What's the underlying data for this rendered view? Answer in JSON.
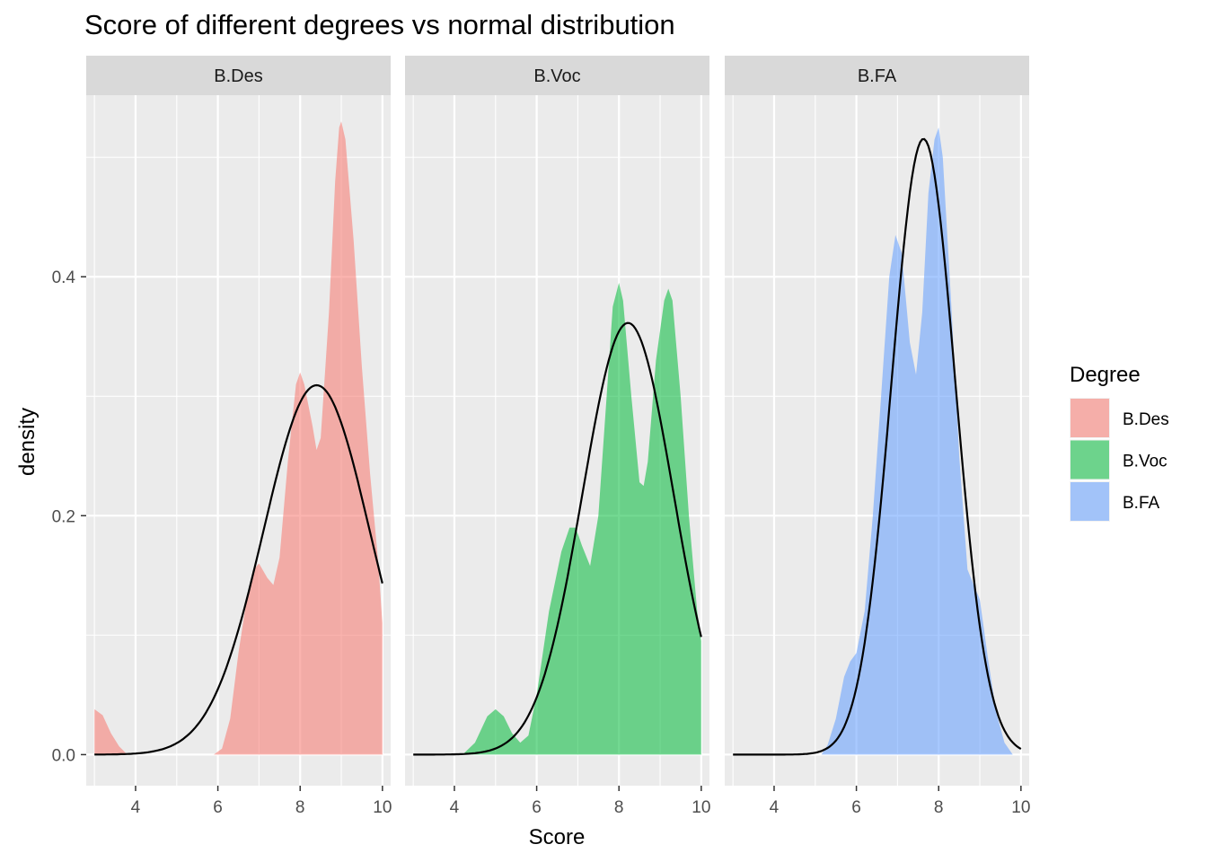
{
  "chart_data": {
    "type": "area",
    "title": "Score of different degrees vs normal distribution",
    "xlabel": "Score",
    "ylabel": "density",
    "xlim": [
      2.8,
      10.2
    ],
    "ylim": [
      -0.026,
      0.552
    ],
    "x_ticks": [
      4,
      6,
      8,
      10
    ],
    "x_tick_labels": [
      "4",
      "6",
      "8",
      "10"
    ],
    "y_ticks": [
      0.0,
      0.2,
      0.4
    ],
    "y_tick_labels": [
      "0.0",
      "0.2",
      "0.4"
    ],
    "grid": true,
    "legend": {
      "title": "Degree",
      "placement": "right"
    },
    "panels": [
      {
        "name": "B.Des",
        "color": "#F8766D",
        "normal_mean": 8.4,
        "normal_sd": 1.29,
        "density": [
          [
            3.0,
            0.038
          ],
          [
            3.2,
            0.033
          ],
          [
            3.4,
            0.018
          ],
          [
            3.6,
            0.007
          ],
          [
            3.8,
            0.0
          ],
          [
            5.9,
            0.0
          ],
          [
            6.1,
            0.005
          ],
          [
            6.3,
            0.03
          ],
          [
            6.5,
            0.085
          ],
          [
            6.7,
            0.13
          ],
          [
            6.85,
            0.154
          ],
          [
            7.0,
            0.16
          ],
          [
            7.2,
            0.148
          ],
          [
            7.35,
            0.142
          ],
          [
            7.5,
            0.165
          ],
          [
            7.7,
            0.245
          ],
          [
            7.9,
            0.31
          ],
          [
            8.0,
            0.32
          ],
          [
            8.1,
            0.31
          ],
          [
            8.3,
            0.275
          ],
          [
            8.4,
            0.255
          ],
          [
            8.5,
            0.265
          ],
          [
            8.7,
            0.37
          ],
          [
            8.85,
            0.48
          ],
          [
            8.95,
            0.525
          ],
          [
            9.0,
            0.53
          ],
          [
            9.1,
            0.515
          ],
          [
            9.3,
            0.43
          ],
          [
            9.5,
            0.325
          ],
          [
            9.7,
            0.235
          ],
          [
            9.9,
            0.16
          ],
          [
            10.0,
            0.11
          ]
        ]
      },
      {
        "name": "B.Voc",
        "color": "#00BA38",
        "normal_mean": 8.22,
        "normal_sd": 1.104,
        "density": [
          [
            4.2,
            0.0
          ],
          [
            4.5,
            0.01
          ],
          [
            4.8,
            0.032
          ],
          [
            5.0,
            0.038
          ],
          [
            5.2,
            0.032
          ],
          [
            5.4,
            0.018
          ],
          [
            5.6,
            0.01
          ],
          [
            5.8,
            0.016
          ],
          [
            6.0,
            0.05
          ],
          [
            6.3,
            0.12
          ],
          [
            6.6,
            0.17
          ],
          [
            6.8,
            0.19
          ],
          [
            6.95,
            0.19
          ],
          [
            7.1,
            0.175
          ],
          [
            7.3,
            0.158
          ],
          [
            7.5,
            0.2
          ],
          [
            7.7,
            0.3
          ],
          [
            7.85,
            0.375
          ],
          [
            8.0,
            0.395
          ],
          [
            8.1,
            0.38
          ],
          [
            8.3,
            0.3
          ],
          [
            8.5,
            0.228
          ],
          [
            8.6,
            0.225
          ],
          [
            8.7,
            0.245
          ],
          [
            8.9,
            0.33
          ],
          [
            9.1,
            0.38
          ],
          [
            9.2,
            0.39
          ],
          [
            9.3,
            0.38
          ],
          [
            9.5,
            0.3
          ],
          [
            9.7,
            0.2
          ],
          [
            9.9,
            0.12
          ],
          [
            10.0,
            0.095
          ]
        ]
      },
      {
        "name": "B.FA",
        "color": "#619CFF",
        "normal_mean": 7.63,
        "normal_sd": 0.774,
        "density": [
          [
            5.15,
            0.0
          ],
          [
            5.3,
            0.008
          ],
          [
            5.5,
            0.03
          ],
          [
            5.7,
            0.065
          ],
          [
            5.85,
            0.078
          ],
          [
            6.0,
            0.085
          ],
          [
            6.2,
            0.12
          ],
          [
            6.4,
            0.2
          ],
          [
            6.6,
            0.3
          ],
          [
            6.8,
            0.4
          ],
          [
            6.95,
            0.435
          ],
          [
            7.1,
            0.42
          ],
          [
            7.3,
            0.345
          ],
          [
            7.45,
            0.318
          ],
          [
            7.6,
            0.37
          ],
          [
            7.75,
            0.47
          ],
          [
            7.9,
            0.515
          ],
          [
            8.0,
            0.525
          ],
          [
            8.1,
            0.5
          ],
          [
            8.3,
            0.38
          ],
          [
            8.5,
            0.25
          ],
          [
            8.7,
            0.155
          ],
          [
            8.85,
            0.142
          ],
          [
            9.0,
            0.13
          ],
          [
            9.2,
            0.08
          ],
          [
            9.4,
            0.035
          ],
          [
            9.6,
            0.01
          ],
          [
            9.8,
            0.0
          ]
        ]
      }
    ]
  }
}
